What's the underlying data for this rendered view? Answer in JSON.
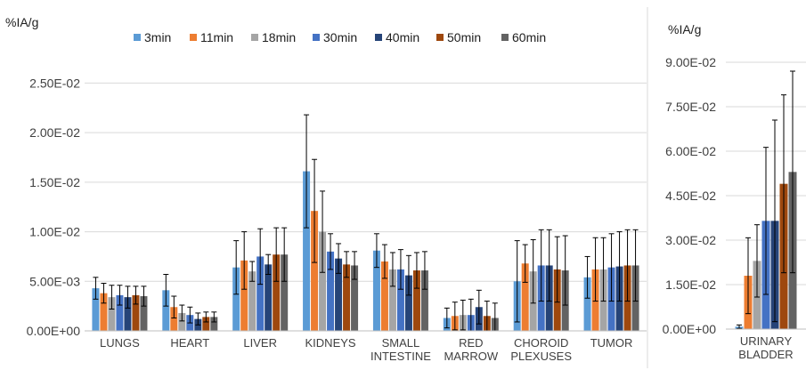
{
  "chart_data": [
    {
      "type": "bar",
      "ylabel": "%IA/g",
      "ylim": [
        0,
        0.028
      ],
      "yticks": [
        "0.00E+00",
        "5.00E-03",
        "1.00E-02",
        "1.50E-02",
        "2.00E-02",
        "2.50E-02"
      ],
      "ytick_values": [
        0,
        0.005,
        0.01,
        0.015,
        0.02,
        0.025
      ],
      "categories": [
        [
          "LUNGS"
        ],
        [
          "HEART"
        ],
        [
          "LIVER"
        ],
        [
          "KIDNEYS"
        ],
        [
          "SMALL",
          "INTESTINE"
        ],
        [
          "RED",
          "MARROW"
        ],
        [
          "CHOROID",
          "PLEXUSES"
        ],
        [
          "TUMOR"
        ]
      ],
      "legend_position": "top",
      "series": [
        {
          "name": "3min",
          "color": "#5b9bd5",
          "values": [
            0.0043,
            0.0041,
            0.0064,
            0.0161,
            0.0081,
            0.0013,
            0.005,
            0.0054
          ],
          "errors": [
            0.0011,
            0.0016,
            0.0027,
            0.0057,
            0.0017,
            0.001,
            0.0041,
            0.0021
          ]
        },
        {
          "name": "11min",
          "color": "#ed7d31",
          "values": [
            0.0038,
            0.0024,
            0.0071,
            0.0121,
            0.007,
            0.0015,
            0.0068,
            0.0062
          ],
          "errors": [
            0.001,
            0.0011,
            0.0029,
            0.0052,
            0.0017,
            0.0014,
            0.0019,
            0.0032
          ]
        },
        {
          "name": "18min",
          "color": "#a5a5a5",
          "values": [
            0.0034,
            0.0018,
            0.006,
            0.01,
            0.0062,
            0.0016,
            0.006,
            0.0062
          ],
          "errors": [
            0.0012,
            0.0008,
            0.001,
            0.0041,
            0.0017,
            0.0015,
            0.0032,
            0.0032
          ]
        },
        {
          "name": "30min",
          "color": "#4472c4",
          "values": [
            0.0036,
            0.0016,
            0.0075,
            0.008,
            0.0062,
            0.0016,
            0.0066,
            0.0064
          ],
          "errors": [
            0.001,
            0.0008,
            0.0028,
            0.0018,
            0.002,
            0.0016,
            0.0036,
            0.0034
          ]
        },
        {
          "name": "40min",
          "color": "#264478",
          "values": [
            0.0034,
            0.0012,
            0.0067,
            0.0073,
            0.0056,
            0.0024,
            0.0066,
            0.0065
          ],
          "errors": [
            0.0011,
            0.0006,
            0.001,
            0.0015,
            0.002,
            0.0017,
            0.0036,
            0.0035
          ]
        },
        {
          "name": "50min",
          "color": "#9e480e",
          "values": [
            0.0036,
            0.0014,
            0.0077,
            0.0067,
            0.0061,
            0.0015,
            0.0062,
            0.0066
          ],
          "errors": [
            0.0009,
            0.0005,
            0.0027,
            0.0013,
            0.0018,
            0.0015,
            0.0033,
            0.0036
          ]
        },
        {
          "name": "60min",
          "color": "#636363",
          "values": [
            0.0035,
            0.0014,
            0.0077,
            0.0066,
            0.0061,
            0.0013,
            0.0061,
            0.0066
          ],
          "errors": [
            0.001,
            0.0005,
            0.0027,
            0.0014,
            0.0019,
            0.0015,
            0.0035,
            0.0036
          ]
        }
      ]
    },
    {
      "type": "bar",
      "ylabel": "%IA/g",
      "ylim": [
        0,
        0.09
      ],
      "yticks": [
        "0.00E+00",
        "1.50E-02",
        "3.00E-02",
        "4.50E-02",
        "6.00E-02",
        "7.50E-02",
        "9.00E-02"
      ],
      "ytick_values": [
        0,
        0.015,
        0.03,
        0.045,
        0.06,
        0.075,
        0.09
      ],
      "categories": [
        [
          "URINARY",
          "BLADDER"
        ]
      ],
      "series": [
        {
          "name": "3min",
          "values": [
            0.0008
          ],
          "errors": [
            0.0006
          ]
        },
        {
          "name": "11min",
          "values": [
            0.018
          ],
          "errors": [
            0.0128
          ]
        },
        {
          "name": "18min",
          "values": [
            0.023
          ],
          "errors": [
            0.0122
          ]
        },
        {
          "name": "30min",
          "values": [
            0.0365
          ],
          "errors": [
            0.0248
          ]
        },
        {
          "name": "40min",
          "values": [
            0.0365
          ],
          "errors": [
            0.034
          ]
        },
        {
          "name": "50min",
          "values": [
            0.049
          ],
          "errors": [
            0.03
          ]
        },
        {
          "name": "60min",
          "values": [
            0.053
          ],
          "errors": [
            0.034
          ]
        }
      ]
    }
  ]
}
